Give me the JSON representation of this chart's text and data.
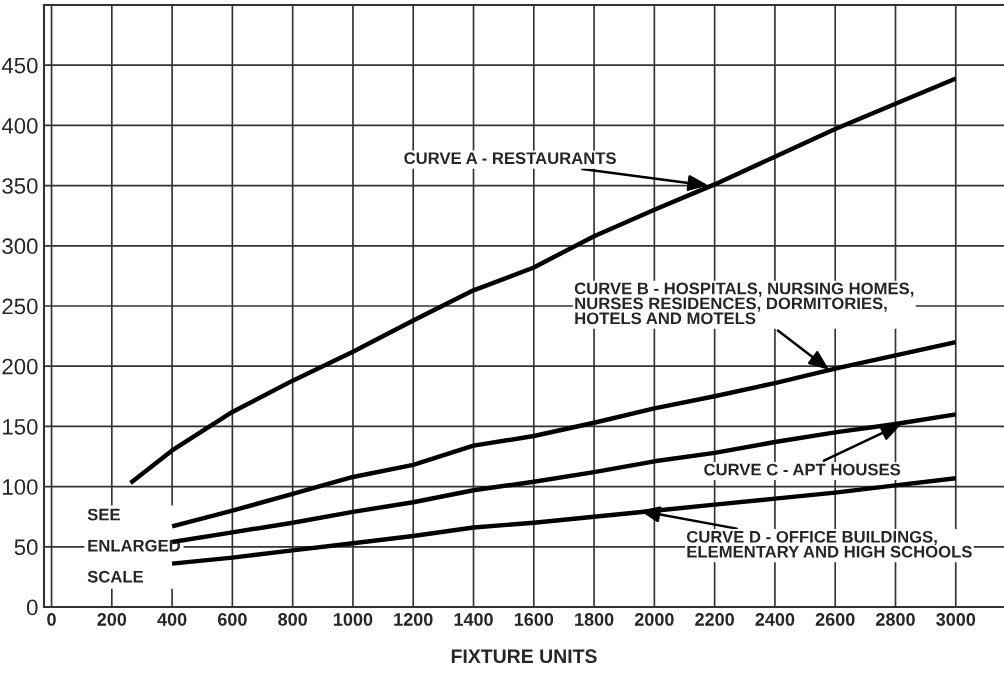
{
  "chart_data": {
    "type": "line",
    "xlabel": "FIXTURE UNITS",
    "xlim": [
      -25,
      3160
    ],
    "ylim": [
      0,
      500
    ],
    "xticks": [
      0,
      200,
      400,
      600,
      800,
      1000,
      1200,
      1400,
      1600,
      1800,
      2000,
      2200,
      2400,
      2600,
      2800,
      3000
    ],
    "yticks": [
      0,
      50,
      100,
      150,
      200,
      250,
      300,
      350,
      400,
      450
    ],
    "grid": true,
    "legend": false,
    "marker": "none",
    "line_style": "solid",
    "series": [
      {
        "color": "#000000",
        "x": [
          262,
          400,
          600,
          800,
          1000,
          1200,
          1400,
          1600,
          1800,
          2000,
          2200,
          2400,
          2600,
          2800,
          3000
        ],
        "values": [
          103,
          130,
          162,
          188,
          212,
          238,
          263,
          282,
          308,
          330,
          351,
          374,
          397,
          418,
          439
        ]
      },
      {
        "color": "#000000",
        "x": [
          400,
          600,
          800,
          1000,
          1200,
          1400,
          1600,
          1800,
          2000,
          2200,
          2400,
          2600,
          2800,
          3000
        ],
        "values": [
          67,
          80,
          94,
          108,
          118,
          134,
          142,
          153,
          165,
          175,
          186,
          198,
          209,
          220
        ]
      },
      {
        "color": "#000000",
        "x": [
          400,
          600,
          800,
          1000,
          1200,
          1400,
          1600,
          1800,
          2000,
          2200,
          2400,
          2600,
          2800,
          3000
        ],
        "values": [
          54,
          62,
          70,
          79,
          87,
          97,
          104,
          112,
          121,
          128,
          137,
          145,
          152,
          160
        ]
      },
      {
        "color": "#000000",
        "x": [
          400,
          600,
          800,
          1000,
          1200,
          1400,
          1600,
          1800,
          2000,
          2200,
          2400,
          2600,
          2800,
          3000
        ],
        "values": [
          36,
          41,
          47,
          53,
          59,
          66,
          70,
          75,
          80,
          85,
          90,
          95,
          101,
          107
        ]
      }
    ],
    "annotations": [
      {
        "text": "CURVE A - RESTAURANTS",
        "x": 2180,
        "y": 350
      },
      {
        "text": "CURVE B - HOSPITALS, NURSING HOMES,\nNURSES RESIDENCES, DORMITORIES,\nHOTELS AND MOTELS",
        "x": 2580,
        "y": 197
      },
      {
        "text": "CURVE C - APT HOUSES",
        "x": 2820,
        "y": 152
      },
      {
        "text": "CURVE D - OFFICE BUILDINGS,\nELEMENTARY AND HIGH SCHOOLS",
        "x": 1950,
        "y": 80
      },
      "SEE\n\nENLARGED\n\nSCALE"
    ]
  }
}
